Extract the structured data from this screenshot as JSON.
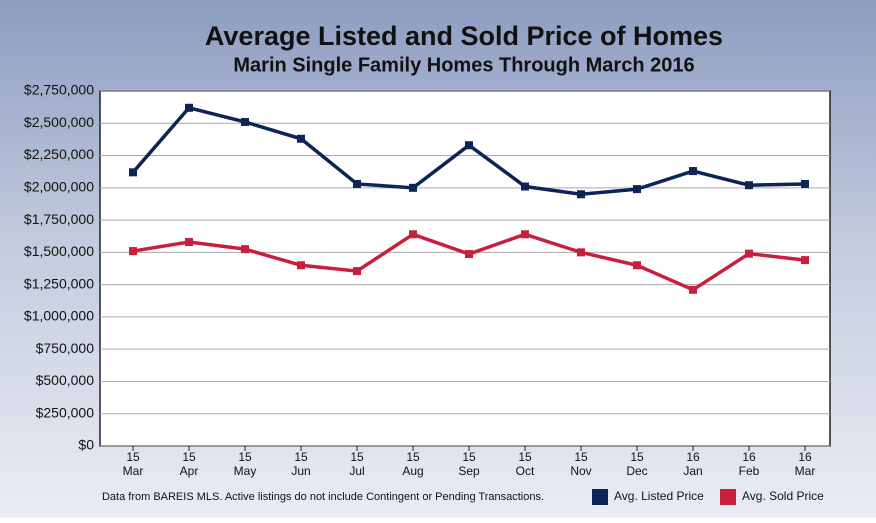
{
  "chart_data": {
    "type": "line",
    "title": "Average Listed and Sold Price of Homes",
    "subtitle": "Marin Single Family Homes Through March 2016",
    "note": "Data from BAREIS MLS. Active listings do not include Contingent or Pending Transactions.",
    "categories": [
      [
        "15",
        "Mar"
      ],
      [
        "15",
        "Apr"
      ],
      [
        "15",
        "May"
      ],
      [
        "15",
        "Jun"
      ],
      [
        "15",
        "Jul"
      ],
      [
        "15",
        "Aug"
      ],
      [
        "15",
        "Sep"
      ],
      [
        "15",
        "Oct"
      ],
      [
        "15",
        "Nov"
      ],
      [
        "15",
        "Dec"
      ],
      [
        "16",
        "Jan"
      ],
      [
        "16",
        "Feb"
      ],
      [
        "16",
        "Mar"
      ]
    ],
    "series": [
      {
        "name": "Avg. Listed Price",
        "color": "#0d2457",
        "values": [
          2120000,
          2620000,
          2510000,
          2380000,
          2030000,
          2000000,
          2330000,
          2010000,
          1950000,
          1990000,
          2130000,
          2020000,
          2030000
        ]
      },
      {
        "name": "Avg. Sold Price",
        "color": "#c8203a",
        "values": [
          1510000,
          1580000,
          1525000,
          1400000,
          1355000,
          1640000,
          1487000,
          1640000,
          1500000,
          1400000,
          1210000,
          1490000,
          1440000
        ]
      }
    ],
    "ylim": [
      0,
      2750000
    ],
    "yticks": [
      {
        "value": 0,
        "label": "$0"
      },
      {
        "value": 250000,
        "label": "$250,000"
      },
      {
        "value": 500000,
        "label": "$500,000"
      },
      {
        "value": 750000,
        "label": "$750,000"
      },
      {
        "value": 1000000,
        "label": "$1,000,000"
      },
      {
        "value": 1250000,
        "label": "$1,250,000"
      },
      {
        "value": 1500000,
        "label": "$1,500,000"
      },
      {
        "value": 1750000,
        "label": "$1,750,000"
      },
      {
        "value": 2000000,
        "label": "$2,000,000"
      },
      {
        "value": 2250000,
        "label": "$2,250,000"
      },
      {
        "value": 2500000,
        "label": "$2,500,000"
      },
      {
        "value": 2750000,
        "label": "$2,750,000"
      }
    ],
    "grid": true
  }
}
